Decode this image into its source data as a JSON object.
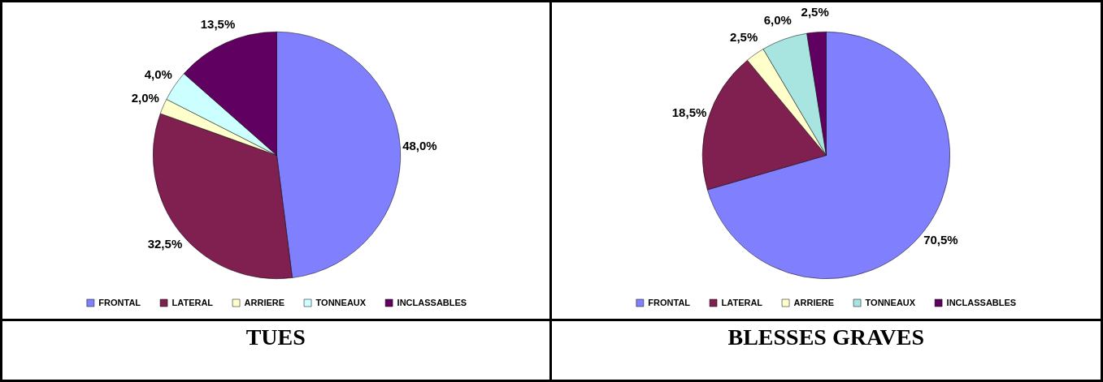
{
  "chart_data": [
    {
      "type": "pie",
      "title": "TUES",
      "categories": [
        "FRONTAL",
        "LATERAL",
        "ARRIERE",
        "TONNEAUX",
        "INCLASSABLES"
      ],
      "values": [
        48.0,
        32.5,
        2.0,
        4.0,
        13.5
      ],
      "value_labels": [
        "48,0%",
        "32,5%",
        "2,0%",
        "4,0%",
        "13,5%"
      ],
      "colors": [
        "#8080ff",
        "#7f2050",
        "#ffffcc",
        "#ccffff",
        "#600060"
      ],
      "legend": "bottom"
    },
    {
      "type": "pie",
      "title": "BLESSES GRAVES",
      "categories": [
        "FRONTAL",
        "LATERAL",
        "ARRIERE",
        "TONNEAUX",
        "INCLASSABLES"
      ],
      "values": [
        70.5,
        18.5,
        2.5,
        6.0,
        2.5
      ],
      "value_labels": [
        "70,5%",
        "18,5%",
        "2,5%",
        "6,0%",
        "2,5%"
      ],
      "colors": [
        "#8080ff",
        "#7f2050",
        "#ffffcc",
        "#a8e4e0",
        "#600060"
      ],
      "legend": "bottom"
    }
  ]
}
